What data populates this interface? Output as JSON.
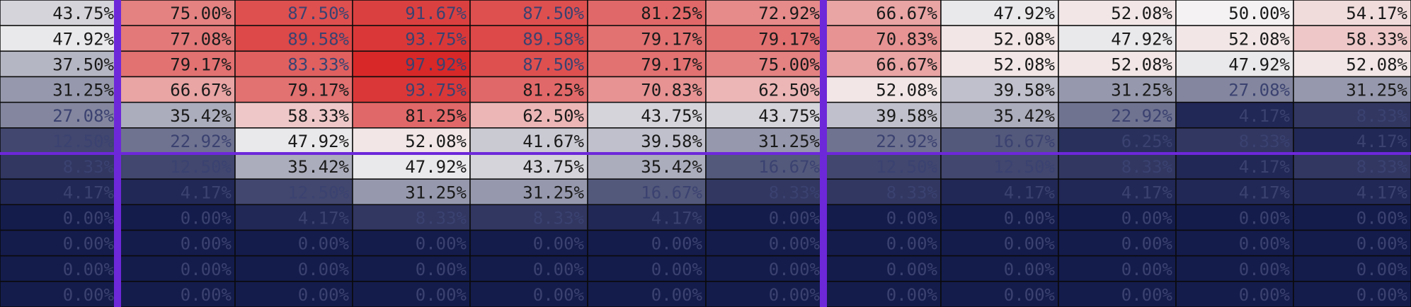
{
  "chart_data": {
    "type": "heatmap",
    "value_format": "percent",
    "decimals": 2,
    "color_scale": {
      "low": "#141c4c",
      "mid": "#f4f2f2",
      "high": "#d72020",
      "mid_value": 50
    },
    "divider_color": "#6d28d9",
    "divider_after_columns": [
      0,
      6
    ],
    "divider_after_rows": [
      5
    ],
    "rows": [
      [
        43.75,
        75.0,
        87.5,
        91.67,
        87.5,
        81.25,
        72.92,
        66.67,
        47.92,
        52.08,
        50.0,
        54.17
      ],
      [
        47.92,
        77.08,
        89.58,
        93.75,
        89.58,
        79.17,
        79.17,
        70.83,
        52.08,
        47.92,
        52.08,
        58.33
      ],
      [
        37.5,
        79.17,
        83.33,
        97.92,
        87.5,
        79.17,
        75.0,
        66.67,
        52.08,
        52.08,
        47.92,
        52.08
      ],
      [
        31.25,
        66.67,
        79.17,
        93.75,
        81.25,
        70.83,
        62.5,
        52.08,
        39.58,
        31.25,
        27.08,
        31.25
      ],
      [
        27.08,
        35.42,
        58.33,
        81.25,
        62.5,
        43.75,
        43.75,
        39.58,
        35.42,
        22.92,
        4.17,
        8.33
      ],
      [
        12.5,
        22.92,
        47.92,
        52.08,
        41.67,
        39.58,
        31.25,
        22.92,
        16.67,
        6.25,
        8.33,
        4.17
      ],
      [
        8.33,
        12.5,
        35.42,
        47.92,
        43.75,
        35.42,
        16.67,
        12.5,
        12.5,
        8.33,
        4.17,
        8.33
      ],
      [
        4.17,
        4.17,
        12.5,
        31.25,
        31.25,
        16.67,
        8.33,
        8.33,
        4.17,
        4.17,
        4.17,
        4.17
      ],
      [
        0.0,
        0.0,
        4.17,
        8.33,
        8.33,
        4.17,
        0.0,
        0.0,
        0.0,
        0.0,
        0.0,
        0.0
      ],
      [
        0.0,
        0.0,
        0.0,
        0.0,
        0.0,
        0.0,
        0.0,
        0.0,
        0.0,
        0.0,
        0.0,
        0.0
      ],
      [
        0.0,
        0.0,
        0.0,
        0.0,
        0.0,
        0.0,
        0.0,
        0.0,
        0.0,
        0.0,
        0.0,
        0.0
      ],
      [
        0.0,
        0.0,
        0.0,
        0.0,
        0.0,
        0.0,
        0.0,
        0.0,
        0.0,
        0.0,
        0.0,
        0.0
      ]
    ]
  }
}
